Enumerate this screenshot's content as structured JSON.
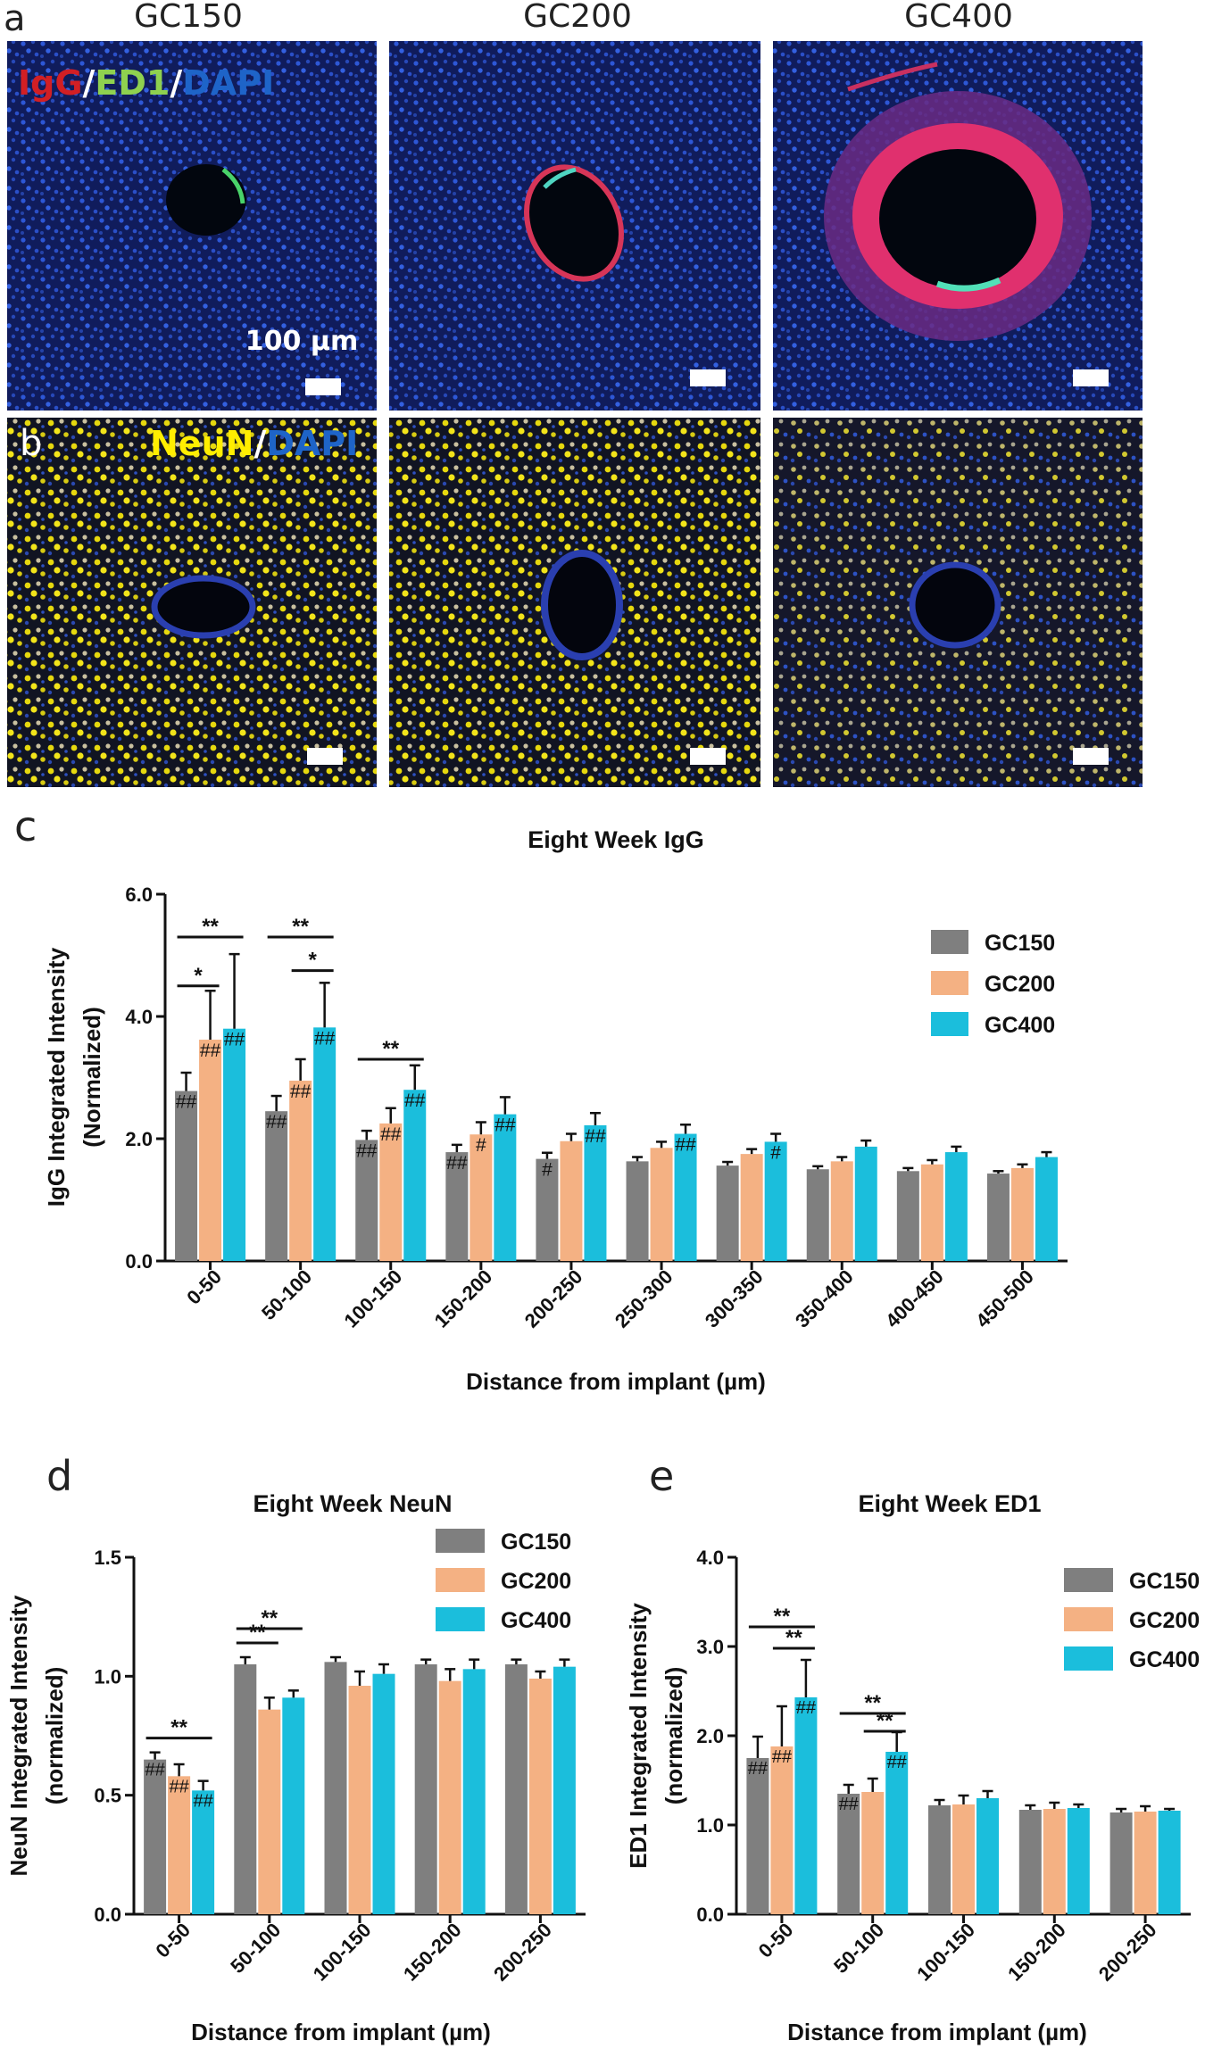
{
  "figure": {
    "panel_letters": {
      "a": "a",
      "b": "b",
      "c": "c",
      "d": "d",
      "e": "e"
    },
    "column_labels": [
      "GC150",
      "GC200",
      "GC400"
    ],
    "stain_a": [
      {
        "text": "IgG",
        "color": "#d21f24"
      },
      {
        "text": "/",
        "color": "#ffffff"
      },
      {
        "text": "ED1",
        "color": "#8fd14f"
      },
      {
        "text": "/",
        "color": "#ffffff"
      },
      {
        "text": "DAPI",
        "color": "#1e64c8"
      }
    ],
    "stain_b": [
      {
        "text": "NeuN",
        "color": "#ffee00"
      },
      {
        "text": "/",
        "color": "#ffffff"
      },
      {
        "text": "DAPI",
        "color": "#1e64c8"
      }
    ],
    "scale_bar_label": "100 µm"
  },
  "colors": {
    "GC150": "#7f7f7f",
    "GC200": "#f4b183",
    "GC400": "#1bbedc"
  },
  "chart_data": [
    {
      "id": "c",
      "type": "bar",
      "title": "Eight Week IgG",
      "ylabel_lines": [
        "IgG Integrated Intensity",
        "(Normalized)"
      ],
      "xlabel": "Distance from implant (µm)",
      "ylim": [
        0,
        6
      ],
      "yticks": [
        "0.0",
        "2.0",
        "4.0",
        "6.0"
      ],
      "categories": [
        "0-50",
        "50-100",
        "100-150",
        "150-200",
        "200-250",
        "250-300",
        "300-350",
        "350-400",
        "400-450",
        "450-500"
      ],
      "series": [
        {
          "name": "GC150",
          "values": [
            2.78,
            2.45,
            1.98,
            1.78,
            1.67,
            1.63,
            1.56,
            1.5,
            1.47,
            1.43
          ],
          "errors": [
            0.3,
            0.25,
            0.15,
            0.12,
            0.1,
            0.07,
            0.06,
            0.05,
            0.05,
            0.04
          ]
        },
        {
          "name": "GC200",
          "values": [
            3.62,
            2.95,
            2.25,
            2.07,
            1.96,
            1.85,
            1.75,
            1.63,
            1.58,
            1.52
          ],
          "errors": [
            0.8,
            0.35,
            0.25,
            0.2,
            0.12,
            0.1,
            0.08,
            0.07,
            0.07,
            0.06
          ]
        },
        {
          "name": "GC400",
          "values": [
            3.8,
            3.82,
            2.8,
            2.4,
            2.22,
            2.08,
            1.95,
            1.87,
            1.78,
            1.7
          ],
          "errors": [
            1.22,
            0.73,
            0.4,
            0.28,
            0.2,
            0.15,
            0.13,
            0.1,
            0.09,
            0.08
          ]
        }
      ],
      "hash_marks": [
        {
          "cat": 0,
          "series": 0,
          "text": "##"
        },
        {
          "cat": 0,
          "series": 1,
          "text": "##"
        },
        {
          "cat": 0,
          "series": 2,
          "text": "##"
        },
        {
          "cat": 1,
          "series": 0,
          "text": "##"
        },
        {
          "cat": 1,
          "series": 1,
          "text": "##"
        },
        {
          "cat": 1,
          "series": 2,
          "text": "##"
        },
        {
          "cat": 2,
          "series": 0,
          "text": "##"
        },
        {
          "cat": 2,
          "series": 1,
          "text": "##"
        },
        {
          "cat": 2,
          "series": 2,
          "text": "##"
        },
        {
          "cat": 3,
          "series": 0,
          "text": "##"
        },
        {
          "cat": 3,
          "series": 1,
          "text": "#"
        },
        {
          "cat": 3,
          "series": 2,
          "text": "##"
        },
        {
          "cat": 4,
          "series": 0,
          "text": "#"
        },
        {
          "cat": 4,
          "series": 2,
          "text": "##"
        },
        {
          "cat": 5,
          "series": 2,
          "text": "##"
        },
        {
          "cat": 6,
          "series": 2,
          "text": "#"
        }
      ],
      "significance": [
        {
          "cat": 0,
          "from": 0,
          "to": 2,
          "level": 5.3,
          "text": "**"
        },
        {
          "cat": 0,
          "from": 0,
          "to": 1,
          "level": 4.5,
          "text": "*"
        },
        {
          "cat": 1,
          "from": 0,
          "to": 2,
          "level": 5.3,
          "text": "**"
        },
        {
          "cat": 1,
          "from": 1,
          "to": 2,
          "level": 4.75,
          "text": "*"
        },
        {
          "cat": 2,
          "from": 0,
          "to": 2,
          "level": 3.3,
          "text": "**"
        }
      ],
      "legend": [
        "GC150",
        "GC200",
        "GC400"
      ]
    },
    {
      "id": "d",
      "type": "bar",
      "title": "Eight Week NeuN",
      "ylabel_lines": [
        "NeuN Integrated  Intensity",
        "(normalized)"
      ],
      "xlabel": "Distance from implant (µm)",
      "ylim": [
        0,
        1.5
      ],
      "yticks": [
        "0.0",
        "0.5",
        "1.0",
        "1.5"
      ],
      "categories": [
        "0-50",
        "50-100",
        "100-150",
        "150-200",
        "200-250"
      ],
      "series": [
        {
          "name": "GC150",
          "values": [
            0.65,
            1.05,
            1.06,
            1.05,
            1.05
          ],
          "errors": [
            0.03,
            0.03,
            0.02,
            0.02,
            0.02
          ]
        },
        {
          "name": "GC200",
          "values": [
            0.58,
            0.86,
            0.96,
            0.98,
            0.99
          ],
          "errors": [
            0.05,
            0.05,
            0.06,
            0.05,
            0.03
          ]
        },
        {
          "name": "GC400",
          "values": [
            0.52,
            0.91,
            1.01,
            1.03,
            1.04
          ],
          "errors": [
            0.04,
            0.03,
            0.04,
            0.04,
            0.03
          ]
        }
      ],
      "hash_marks": [
        {
          "cat": 0,
          "series": 0,
          "text": "##"
        },
        {
          "cat": 0,
          "series": 1,
          "text": "##"
        },
        {
          "cat": 0,
          "series": 2,
          "text": "##"
        }
      ],
      "significance": [
        {
          "cat": 0,
          "from": 0,
          "to": 2,
          "level": 0.74,
          "text": "**"
        },
        {
          "cat": 1,
          "from": 0,
          "to": 2,
          "level": 1.2,
          "text": "**"
        },
        {
          "cat": 1,
          "from": 0,
          "to": 1,
          "level": 1.14,
          "text": "**"
        }
      ],
      "legend": [
        "GC150",
        "GC200",
        "GC400"
      ]
    },
    {
      "id": "e",
      "type": "bar",
      "title": "Eight Week ED1",
      "ylabel_lines": [
        "ED1 Integrated  Intensity",
        "(normalized)"
      ],
      "xlabel": "Distance from implant (µm)",
      "ylim": [
        0,
        4
      ],
      "yticks": [
        "0.0",
        "1.0",
        "2.0",
        "3.0",
        "4.0"
      ],
      "categories": [
        "0-50",
        "50-100",
        "100-150",
        "150-200",
        "200-250"
      ],
      "series": [
        {
          "name": "GC150",
          "values": [
            1.75,
            1.35,
            1.22,
            1.17,
            1.14
          ],
          "errors": [
            0.24,
            0.1,
            0.06,
            0.05,
            0.04
          ]
        },
        {
          "name": "GC200",
          "values": [
            1.88,
            1.37,
            1.23,
            1.18,
            1.15
          ],
          "errors": [
            0.45,
            0.15,
            0.1,
            0.07,
            0.06
          ]
        },
        {
          "name": "GC400",
          "values": [
            2.43,
            1.82,
            1.3,
            1.19,
            1.16
          ],
          "errors": [
            0.42,
            0.22,
            0.08,
            0.04,
            0.02
          ]
        }
      ],
      "hash_marks": [
        {
          "cat": 0,
          "series": 0,
          "text": "##"
        },
        {
          "cat": 0,
          "series": 1,
          "text": "##"
        },
        {
          "cat": 0,
          "series": 2,
          "text": "##"
        },
        {
          "cat": 1,
          "series": 0,
          "text": "##"
        },
        {
          "cat": 1,
          "series": 2,
          "text": "##"
        }
      ],
      "significance": [
        {
          "cat": 0,
          "from": 0,
          "to": 2,
          "level": 3.22,
          "text": "**"
        },
        {
          "cat": 0,
          "from": 1,
          "to": 2,
          "level": 2.98,
          "text": "**"
        },
        {
          "cat": 1,
          "from": 0,
          "to": 2,
          "level": 2.25,
          "text": "**"
        },
        {
          "cat": 1,
          "from": 1,
          "to": 2,
          "level": 2.05,
          "text": "**"
        }
      ],
      "legend": [
        "GC150",
        "GC200",
        "GC400"
      ]
    }
  ]
}
